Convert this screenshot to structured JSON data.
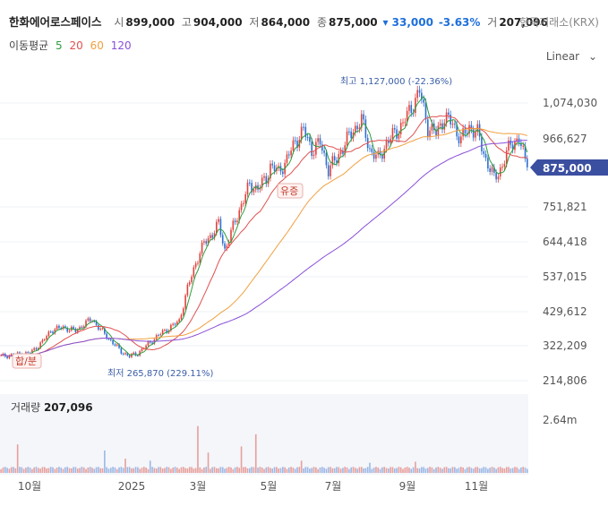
{
  "header": {
    "name": "한화에어로스페이스",
    "open_label": "시",
    "open": "899,000",
    "high_label": "고",
    "high": "904,000",
    "low_label": "저",
    "low": "864,000",
    "close_label": "종",
    "close": "875,000",
    "change": "▾ 33,000",
    "change_pct": "-3.63%",
    "volume_label": "거",
    "volume": "207,096",
    "exchange": "한국거래소(KRX)"
  },
  "ma": {
    "label": "이동평균",
    "periods": [
      {
        "period": "5",
        "color": "#2e9d3e"
      },
      {
        "period": "20",
        "color": "#e05050"
      },
      {
        "period": "60",
        "color": "#f0a040"
      },
      {
        "period": "120",
        "color": "#8a4fd8"
      }
    ]
  },
  "scale_mode": "Linear",
  "chart_data": {
    "type": "candlestick",
    "y_ticks": [
      "1,074,030",
      "966,627",
      "751,821",
      "644,418",
      "537,015",
      "429,612",
      "322,209",
      "214,806"
    ],
    "x_ticks": [
      "10월",
      "2025",
      "3월",
      "5월",
      "7월",
      "9월",
      "11월"
    ],
    "current_price": "875,000",
    "annotations": {
      "max": "최고 1,127,000 (-22.36%)",
      "min": "최저 265,870 (229.11%)",
      "event_split": "합/분",
      "event_rights": "유증"
    },
    "price_path": [
      [
        0,
        290000
      ],
      [
        14,
        300000
      ],
      [
        20,
        335000
      ],
      [
        24,
        370000
      ],
      [
        30,
        380000
      ],
      [
        36,
        368000
      ],
      [
        40,
        390000
      ],
      [
        44,
        405000
      ],
      [
        47,
        380000
      ],
      [
        52,
        345000
      ],
      [
        58,
        305000
      ],
      [
        62,
        290000
      ],
      [
        66,
        300000
      ],
      [
        70,
        322000
      ],
      [
        74,
        345000
      ],
      [
        78,
        365000
      ],
      [
        83,
        385000
      ],
      [
        86,
        400000
      ],
      [
        90,
        500000
      ],
      [
        94,
        580000
      ],
      [
        98,
        640000
      ],
      [
        102,
        670000
      ],
      [
        105,
        700000
      ],
      [
        108,
        620000
      ],
      [
        112,
        690000
      ],
      [
        116,
        760000
      ],
      [
        120,
        820000
      ],
      [
        124,
        810000
      ],
      [
        128,
        840000
      ],
      [
        130,
        880000
      ],
      [
        134,
        860000
      ],
      [
        138,
        900000
      ],
      [
        142,
        955000
      ],
      [
        146,
        990000
      ],
      [
        150,
        930000
      ],
      [
        154,
        950000
      ],
      [
        158,
        870000
      ],
      [
        162,
        900000
      ],
      [
        166,
        950000
      ],
      [
        170,
        990000
      ],
      [
        174,
        1020000
      ],
      [
        178,
        930000
      ],
      [
        182,
        900000
      ],
      [
        186,
        950000
      ],
      [
        190,
        980000
      ],
      [
        194,
        1010000
      ],
      [
        198,
        1060000
      ],
      [
        202,
        1110000
      ],
      [
        206,
        1000000
      ],
      [
        210,
        980000
      ],
      [
        214,
        1030000
      ],
      [
        218,
        1010000
      ],
      [
        222,
        960000
      ],
      [
        226,
        1000000
      ],
      [
        230,
        980000
      ],
      [
        234,
        900000
      ],
      [
        238,
        840000
      ],
      [
        242,
        880000
      ],
      [
        246,
        950000
      ],
      [
        250,
        960000
      ],
      [
        254,
        875000
      ]
    ],
    "volume": {
      "label": "거래량",
      "value": "207,096",
      "ymax_label": "2.64m",
      "ymax": 2640000,
      "spikes": [
        [
          8,
          1400000
        ],
        [
          50,
          1100000
        ],
        [
          60,
          700000
        ],
        [
          72,
          600000
        ],
        [
          95,
          2300000
        ],
        [
          100,
          1000000
        ],
        [
          116,
          1300000
        ],
        [
          123,
          1900000
        ],
        [
          145,
          600000
        ],
        [
          178,
          500000
        ],
        [
          200,
          550000
        ]
      ]
    }
  }
}
